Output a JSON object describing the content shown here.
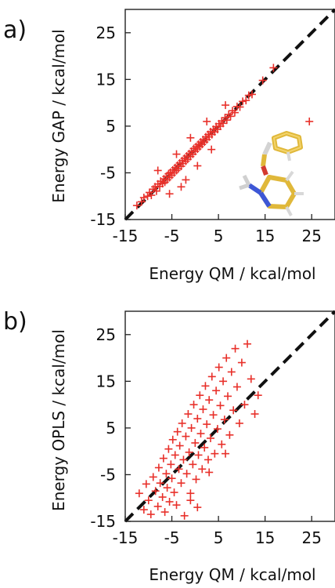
{
  "figure": {
    "background": "#ffffff",
    "marker_color": "#e8302a",
    "diagonal_color": "#111111"
  },
  "chart_data": [
    {
      "type": "scatter",
      "panel_label": "a)",
      "xlabel": "Energy QM / kcal/mol",
      "ylabel": "Energy GAP / kcal/mol",
      "xlim": [
        -15,
        30
      ],
      "ylim": [
        -15,
        30
      ],
      "xticks": [
        -15,
        -5,
        5,
        15,
        25
      ],
      "yticks": [
        -15,
        -5,
        5,
        15,
        25
      ],
      "tick_labels_x": [
        "-15",
        "-5",
        "5",
        "15",
        "25"
      ],
      "tick_labels_y": [
        "-15",
        "-5",
        "5",
        "15",
        "25"
      ],
      "marker": "plus",
      "diagonal": "y = x (black dashed)",
      "grid": false,
      "inset": "molecule (ball-and-stick, pyridine ring with amino and aryloxy groups)",
      "approximate_distribution": "tight band along y = x from about -12 to 12, few outliers up to about 17 and one at about (24.5, 6)",
      "series": [
        {
          "points": [
            [
              -12.5,
              -12.0
            ],
            [
              -11.5,
              -11.2
            ],
            [
              -11.0,
              -10.3
            ],
            [
              -10.2,
              -10.0
            ],
            [
              -9.8,
              -9.2
            ],
            [
              -9.4,
              -9.8
            ],
            [
              -9.0,
              -8.5
            ],
            [
              -8.6,
              -8.0
            ],
            [
              -8.3,
              -8.9
            ],
            [
              -8.0,
              -7.4
            ],
            [
              -7.6,
              -7.9
            ],
            [
              -7.4,
              -6.8
            ],
            [
              -7.0,
              -7.3
            ],
            [
              -6.7,
              -6.3
            ],
            [
              -6.5,
              -7.0
            ],
            [
              -6.2,
              -5.8
            ],
            [
              -6.0,
              -6.5
            ],
            [
              -5.7,
              -5.2
            ],
            [
              -5.5,
              -6.0
            ],
            [
              -5.3,
              -4.9
            ],
            [
              -5.0,
              -5.5
            ],
            [
              -4.8,
              -4.4
            ],
            [
              -4.5,
              -5.0
            ],
            [
              -4.3,
              -3.9
            ],
            [
              -4.0,
              -4.5
            ],
            [
              -3.8,
              -3.4
            ],
            [
              -3.6,
              -4.1
            ],
            [
              -3.3,
              -2.9
            ],
            [
              -3.0,
              -3.6
            ],
            [
              -2.8,
              -2.4
            ],
            [
              -2.6,
              -3.0
            ],
            [
              -2.3,
              -1.9
            ],
            [
              -2.0,
              -2.5
            ],
            [
              -1.8,
              -1.4
            ],
            [
              -1.6,
              -2.1
            ],
            [
              -1.3,
              -0.9
            ],
            [
              -1.0,
              -1.5
            ],
            [
              -0.8,
              -0.4
            ],
            [
              -0.5,
              -1.0
            ],
            [
              -0.3,
              0.2
            ],
            [
              0.0,
              -0.4
            ],
            [
              0.2,
              0.6
            ],
            [
              0.5,
              0.1
            ],
            [
              0.7,
              1.1
            ],
            [
              1.0,
              0.6
            ],
            [
              1.2,
              1.6
            ],
            [
              1.5,
              1.1
            ],
            [
              1.7,
              2.1
            ],
            [
              2.0,
              1.6
            ],
            [
              2.3,
              2.7
            ],
            [
              2.5,
              2.1
            ],
            [
              2.8,
              3.2
            ],
            [
              3.0,
              2.7
            ],
            [
              3.3,
              3.8
            ],
            [
              3.6,
              3.2
            ],
            [
              3.9,
              4.3
            ],
            [
              4.2,
              3.8
            ],
            [
              4.5,
              4.9
            ],
            [
              4.8,
              4.3
            ],
            [
              5.1,
              5.5
            ],
            [
              5.4,
              5.0
            ],
            [
              5.7,
              6.1
            ],
            [
              6.0,
              5.6
            ],
            [
              6.4,
              6.8
            ],
            [
              6.8,
              6.3
            ],
            [
              7.2,
              7.5
            ],
            [
              7.6,
              7.1
            ],
            [
              8.0,
              8.3
            ],
            [
              8.5,
              7.9
            ],
            [
              9.0,
              9.2
            ],
            [
              9.6,
              9.1
            ],
            [
              10.2,
              10.3
            ],
            [
              10.9,
              10.5
            ],
            [
              11.5,
              11.6
            ],
            [
              12.2,
              11.8
            ],
            [
              -3.0,
              -8.0
            ],
            [
              -2.0,
              -6.5
            ],
            [
              -5.5,
              -9.5
            ],
            [
              0.5,
              -3.5
            ],
            [
              3.5,
              0.0
            ],
            [
              -8.0,
              -4.5
            ],
            [
              -1.0,
              2.5
            ],
            [
              2.5,
              6.0
            ],
            [
              6.5,
              9.5
            ],
            [
              -4.0,
              -1.0
            ],
            [
              14.5,
              14.8
            ],
            [
              16.8,
              17.5
            ],
            [
              24.5,
              6.0
            ]
          ]
        }
      ]
    },
    {
      "type": "scatter",
      "panel_label": "b)",
      "xlabel": "Energy QM / kcal/mol",
      "ylabel": "Energy OPLS / kcal/mol",
      "xlim": [
        -15,
        30
      ],
      "ylim": [
        -15,
        30
      ],
      "xticks": [
        -15,
        -5,
        5,
        15,
        25
      ],
      "yticks": [
        -15,
        -5,
        5,
        15,
        25
      ],
      "tick_labels_x": [
        "-15",
        "-5",
        "5",
        "15",
        "25"
      ],
      "tick_labels_y": [
        "-15",
        "-5",
        "5",
        "15",
        "25"
      ],
      "marker": "plus",
      "diagonal": "y = x (black dashed)",
      "grid": false,
      "approximate_distribution": "broad cloud around y = x, x about -12 to 14, y about -14 to 24",
      "series": [
        {
          "points": [
            [
              -12.0,
              -9.0
            ],
            [
              -11.0,
              -12.5
            ],
            [
              -10.5,
              -7.0
            ],
            [
              -10.0,
              -10.5
            ],
            [
              -9.5,
              -13.5
            ],
            [
              -9.0,
              -5.5
            ],
            [
              -8.5,
              -8.5
            ],
            [
              -8.0,
              -11.8
            ],
            [
              -7.8,
              -3.5
            ],
            [
              -7.5,
              -6.8
            ],
            [
              -7.0,
              -9.8
            ],
            [
              -6.8,
              -1.5
            ],
            [
              -6.5,
              -13.0
            ],
            [
              -6.2,
              -4.8
            ],
            [
              -6.0,
              -7.8
            ],
            [
              -5.7,
              0.5
            ],
            [
              -5.5,
              -10.8
            ],
            [
              -5.2,
              -2.8
            ],
            [
              -5.0,
              -5.8
            ],
            [
              -4.8,
              2.5
            ],
            [
              -4.5,
              -8.8
            ],
            [
              -4.3,
              -0.8
            ],
            [
              -4.0,
              -11.5
            ],
            [
              -3.8,
              4.2
            ],
            [
              -3.5,
              -3.8
            ],
            [
              -3.3,
              1.2
            ],
            [
              -3.0,
              -6.8
            ],
            [
              -2.8,
              6.0
            ],
            [
              -2.5,
              -1.8
            ],
            [
              -2.3,
              -13.8
            ],
            [
              -2.0,
              3.2
            ],
            [
              -1.8,
              -4.8
            ],
            [
              -1.5,
              8.0
            ],
            [
              -1.3,
              -0.2
            ],
            [
              -1.0,
              -9.0
            ],
            [
              -0.8,
              5.0
            ],
            [
              -0.5,
              -2.8
            ],
            [
              -0.3,
              10.0
            ],
            [
              0.0,
              1.8
            ],
            [
              0.2,
              -6.0
            ],
            [
              0.5,
              7.0
            ],
            [
              0.7,
              -0.8
            ],
            [
              1.0,
              12.0
            ],
            [
              1.2,
              3.8
            ],
            [
              1.5,
              -3.8
            ],
            [
              1.7,
              9.0
            ],
            [
              2.0,
              0.8
            ],
            [
              2.2,
              14.0
            ],
            [
              2.5,
              5.8
            ],
            [
              2.8,
              -1.8
            ],
            [
              3.0,
              11.0
            ],
            [
              3.3,
              2.8
            ],
            [
              3.6,
              16.0
            ],
            [
              3.9,
              7.8
            ],
            [
              4.2,
              -0.5
            ],
            [
              4.5,
              13.0
            ],
            [
              4.8,
              4.8
            ],
            [
              5.1,
              18.0
            ],
            [
              5.4,
              9.8
            ],
            [
              5.7,
              1.5
            ],
            [
              6.0,
              15.0
            ],
            [
              6.3,
              6.8
            ],
            [
              6.7,
              20.0
            ],
            [
              7.0,
              11.8
            ],
            [
              7.4,
              3.5
            ],
            [
              7.8,
              17.0
            ],
            [
              8.2,
              8.8
            ],
            [
              8.6,
              22.0
            ],
            [
              9.0,
              13.8
            ],
            [
              9.5,
              6.0
            ],
            [
              10.0,
              19.0
            ],
            [
              10.6,
              10.0
            ],
            [
              11.2,
              23.0
            ],
            [
              12.0,
              15.5
            ],
            [
              12.8,
              8.0
            ],
            [
              13.5,
              12.0
            ],
            [
              -1.0,
              -10.5
            ],
            [
              0.5,
              -12.0
            ],
            [
              3.0,
              -4.5
            ],
            [
              6.5,
              -0.5
            ]
          ]
        }
      ]
    }
  ]
}
